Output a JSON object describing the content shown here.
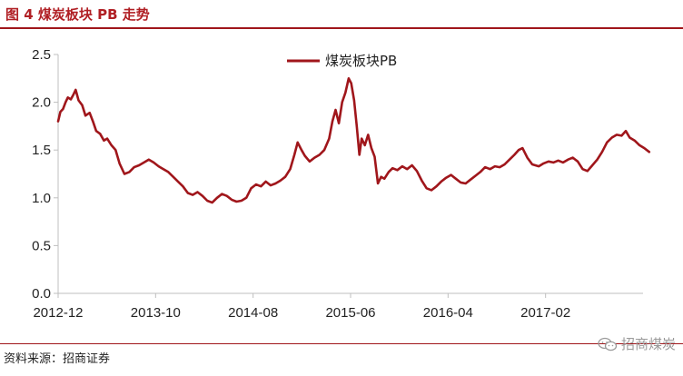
{
  "figure": {
    "title": "图 4  煤炭板块 PB 走势",
    "source": "资料来源：招商证券",
    "watermark": "招商煤炭",
    "watermark_icon": "wechat-icon"
  },
  "colors": {
    "series": "#a0161b",
    "accent": "#b01f24",
    "axis": "#bfbfbf"
  },
  "chart_data": {
    "type": "line",
    "title": "",
    "xlabel": "",
    "ylabel": "",
    "ylim": [
      0,
      2.5
    ],
    "yticks": [
      "0.0",
      "0.5",
      "1.0",
      "1.5",
      "2.0",
      "2.5"
    ],
    "xticks": [
      "2012-12",
      "2013-10",
      "2014-08",
      "2015-06",
      "2016-04",
      "2017-02"
    ],
    "x_range": [
      "2012-12",
      "2017-12"
    ],
    "grid": false,
    "legend_position": "top-center",
    "series": [
      {
        "name": "煤炭板块PB",
        "points": [
          [
            "2012-12-01",
            1.8
          ],
          [
            "2012-12-08",
            1.9
          ],
          [
            "2012-12-16",
            1.93
          ],
          [
            "2012-12-24",
            2.0
          ],
          [
            "2013-01-01",
            2.05
          ],
          [
            "2013-01-10",
            2.03
          ],
          [
            "2013-01-18",
            2.08
          ],
          [
            "2013-01-25",
            2.13
          ],
          [
            "2013-02-04",
            2.02
          ],
          [
            "2013-02-15",
            1.97
          ],
          [
            "2013-02-25",
            1.86
          ],
          [
            "2013-03-08",
            1.89
          ],
          [
            "2013-03-18",
            1.8
          ],
          [
            "2013-03-28",
            1.7
          ],
          [
            "2013-04-10",
            1.67
          ],
          [
            "2013-04-22",
            1.6
          ],
          [
            "2013-05-02",
            1.62
          ],
          [
            "2013-05-15",
            1.55
          ],
          [
            "2013-05-28",
            1.5
          ],
          [
            "2013-06-10",
            1.36
          ],
          [
            "2013-06-25",
            1.25
          ],
          [
            "2013-07-10",
            1.27
          ],
          [
            "2013-07-25",
            1.32
          ],
          [
            "2013-08-10",
            1.34
          ],
          [
            "2013-08-25",
            1.37
          ],
          [
            "2013-09-10",
            1.4
          ],
          [
            "2013-09-25",
            1.37
          ],
          [
            "2013-10-10",
            1.33
          ],
          [
            "2013-10-25",
            1.3
          ],
          [
            "2013-11-10",
            1.27
          ],
          [
            "2013-11-25",
            1.22
          ],
          [
            "2013-12-10",
            1.17
          ],
          [
            "2013-12-25",
            1.12
          ],
          [
            "2014-01-10",
            1.05
          ],
          [
            "2014-01-25",
            1.03
          ],
          [
            "2014-02-10",
            1.06
          ],
          [
            "2014-02-25",
            1.02
          ],
          [
            "2014-03-10",
            0.97
          ],
          [
            "2014-03-25",
            0.95
          ],
          [
            "2014-04-10",
            1.0
          ],
          [
            "2014-04-25",
            1.04
          ],
          [
            "2014-05-10",
            1.02
          ],
          [
            "2014-05-25",
            0.98
          ],
          [
            "2014-06-10",
            0.96
          ],
          [
            "2014-06-25",
            0.97
          ],
          [
            "2014-07-10",
            1.0
          ],
          [
            "2014-07-25",
            1.1
          ],
          [
            "2014-08-10",
            1.14
          ],
          [
            "2014-08-25",
            1.12
          ],
          [
            "2014-09-10",
            1.17
          ],
          [
            "2014-09-25",
            1.13
          ],
          [
            "2014-10-10",
            1.15
          ],
          [
            "2014-10-25",
            1.18
          ],
          [
            "2014-11-10",
            1.22
          ],
          [
            "2014-11-25",
            1.3
          ],
          [
            "2014-12-08",
            1.45
          ],
          [
            "2014-12-18",
            1.58
          ],
          [
            "2014-12-30",
            1.5
          ],
          [
            "2015-01-10",
            1.44
          ],
          [
            "2015-01-25",
            1.38
          ],
          [
            "2015-02-10",
            1.42
          ],
          [
            "2015-02-25",
            1.45
          ],
          [
            "2015-03-10",
            1.5
          ],
          [
            "2015-03-25",
            1.62
          ],
          [
            "2015-04-05",
            1.8
          ],
          [
            "2015-04-15",
            1.92
          ],
          [
            "2015-04-25",
            1.78
          ],
          [
            "2015-05-05",
            2.0
          ],
          [
            "2015-05-15",
            2.1
          ],
          [
            "2015-05-25",
            2.25
          ],
          [
            "2015-06-03",
            2.2
          ],
          [
            "2015-06-12",
            2.02
          ],
          [
            "2015-06-20",
            1.75
          ],
          [
            "2015-06-28",
            1.45
          ],
          [
            "2015-07-05",
            1.62
          ],
          [
            "2015-07-15",
            1.55
          ],
          [
            "2015-07-25",
            1.66
          ],
          [
            "2015-08-05",
            1.52
          ],
          [
            "2015-08-15",
            1.43
          ],
          [
            "2015-08-25",
            1.15
          ],
          [
            "2015-09-05",
            1.22
          ],
          [
            "2015-09-15",
            1.2
          ],
          [
            "2015-09-28",
            1.27
          ],
          [
            "2015-10-10",
            1.31
          ],
          [
            "2015-10-25",
            1.29
          ],
          [
            "2015-11-10",
            1.33
          ],
          [
            "2015-11-25",
            1.3
          ],
          [
            "2015-12-10",
            1.34
          ],
          [
            "2015-12-25",
            1.28
          ],
          [
            "2016-01-10",
            1.18
          ],
          [
            "2016-01-25",
            1.1
          ],
          [
            "2016-02-10",
            1.08
          ],
          [
            "2016-02-25",
            1.12
          ],
          [
            "2016-03-10",
            1.17
          ],
          [
            "2016-03-25",
            1.21
          ],
          [
            "2016-04-10",
            1.24
          ],
          [
            "2016-04-25",
            1.2
          ],
          [
            "2016-05-10",
            1.16
          ],
          [
            "2016-05-25",
            1.15
          ],
          [
            "2016-06-10",
            1.19
          ],
          [
            "2016-06-25",
            1.23
          ],
          [
            "2016-07-10",
            1.27
          ],
          [
            "2016-07-25",
            1.32
          ],
          [
            "2016-08-10",
            1.3
          ],
          [
            "2016-08-25",
            1.33
          ],
          [
            "2016-09-10",
            1.32
          ],
          [
            "2016-09-25",
            1.35
          ],
          [
            "2016-10-10",
            1.4
          ],
          [
            "2016-10-25",
            1.45
          ],
          [
            "2016-11-08",
            1.5
          ],
          [
            "2016-11-20",
            1.52
          ],
          [
            "2016-12-05",
            1.42
          ],
          [
            "2016-12-20",
            1.35
          ],
          [
            "2017-01-10",
            1.33
          ],
          [
            "2017-01-25",
            1.36
          ],
          [
            "2017-02-10",
            1.38
          ],
          [
            "2017-02-25",
            1.37
          ],
          [
            "2017-03-10",
            1.39
          ],
          [
            "2017-03-25",
            1.37
          ],
          [
            "2017-04-10",
            1.4
          ],
          [
            "2017-04-25",
            1.42
          ],
          [
            "2017-05-10",
            1.38
          ],
          [
            "2017-05-25",
            1.3
          ],
          [
            "2017-06-10",
            1.28
          ],
          [
            "2017-06-25",
            1.34
          ],
          [
            "2017-07-10",
            1.4
          ],
          [
            "2017-07-25",
            1.48
          ],
          [
            "2017-08-10",
            1.58
          ],
          [
            "2017-08-25",
            1.63
          ],
          [
            "2017-09-10",
            1.66
          ],
          [
            "2017-09-25",
            1.65
          ],
          [
            "2017-10-08",
            1.7
          ],
          [
            "2017-10-20",
            1.63
          ],
          [
            "2017-11-05",
            1.6
          ],
          [
            "2017-11-20",
            1.55
          ],
          [
            "2017-12-05",
            1.52
          ],
          [
            "2017-12-20",
            1.48
          ]
        ]
      }
    ]
  }
}
